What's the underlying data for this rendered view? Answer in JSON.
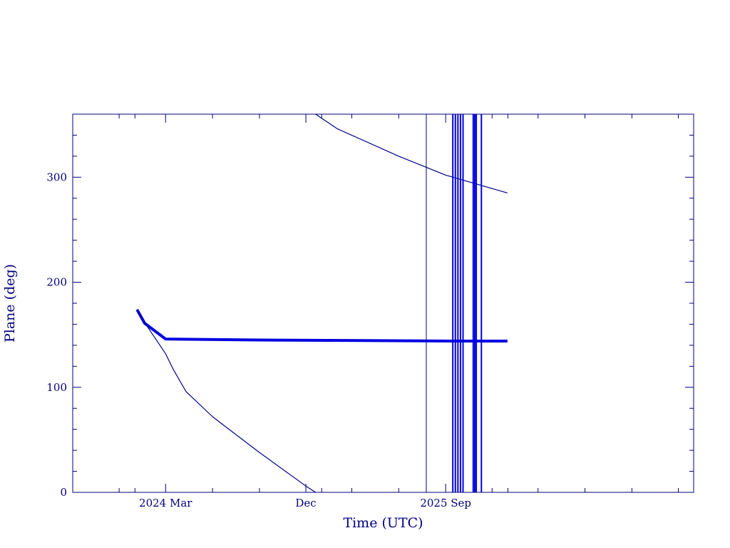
{
  "chart_data": {
    "type": "line",
    "title": "",
    "xlabel": "Time (UTC)",
    "ylabel": "Plane (deg)",
    "xlim": [
      "2023-09-01",
      "2026-12-31"
    ],
    "ylim": [
      0,
      360
    ],
    "x_tick_labels": [
      {
        "date": "2024-03-01",
        "label": "2024 Mar"
      },
      {
        "date": "2024-12-01",
        "label": "Dec"
      },
      {
        "date": "2025-09-01",
        "label": "2025 Sep"
      }
    ],
    "y_tick_labels": [
      {
        "value": 0,
        "label": "0"
      },
      {
        "value": 100,
        "label": "100"
      },
      {
        "value": 200,
        "label": "200"
      },
      {
        "value": 300,
        "label": "300"
      }
    ],
    "colors": {
      "frame": "#00007f",
      "thin_line": "#00008b",
      "thick_line": "#0000e0"
    },
    "series": [
      {
        "points": [
          [
            "2024-01-05",
            174
          ],
          [
            "2024-01-20",
            161
          ],
          [
            "2024-03-01",
            146
          ],
          [
            "2024-09-01",
            145
          ],
          [
            "2025-09-30",
            144
          ],
          [
            "2025-12-31",
            144
          ]
        ],
        "stroke": "thick"
      },
      {
        "points": [
          [
            "2024-01-05",
            173
          ],
          [
            "2024-01-25",
            158
          ],
          [
            "2024-03-01",
            132
          ],
          [
            "2024-03-15",
            118
          ],
          [
            "2024-04-10",
            96
          ],
          [
            "2024-06-01",
            72
          ],
          [
            "2024-09-01",
            38
          ],
          [
            "2024-12-01",
            6
          ],
          [
            "2024-12-20",
            0
          ]
        ],
        "stroke": "thin"
      },
      {
        "points": [
          [
            "2024-12-20",
            360
          ],
          [
            "2025-02-01",
            346
          ],
          [
            "2025-06-01",
            320
          ],
          [
            "2025-09-01",
            302
          ],
          [
            "2025-12-31",
            285
          ]
        ],
        "stroke": "thin"
      }
    ],
    "vertical_lines": [
      {
        "date": "2025-07-25",
        "stroke": "thin"
      },
      {
        "date": "2025-09-15",
        "stroke": "bold"
      },
      {
        "date": "2025-09-20",
        "stroke": "bold"
      },
      {
        "date": "2025-09-25",
        "stroke": "bold"
      },
      {
        "date": "2025-09-30",
        "stroke": "bold"
      },
      {
        "date": "2025-10-05",
        "stroke": "bold"
      },
      {
        "date": "2025-10-25",
        "stroke": "bold"
      },
      {
        "date": "2025-10-28",
        "stroke": "bold"
      },
      {
        "date": "2025-10-31",
        "stroke": "bold"
      },
      {
        "date": "2025-11-10",
        "stroke": "bold"
      }
    ]
  }
}
